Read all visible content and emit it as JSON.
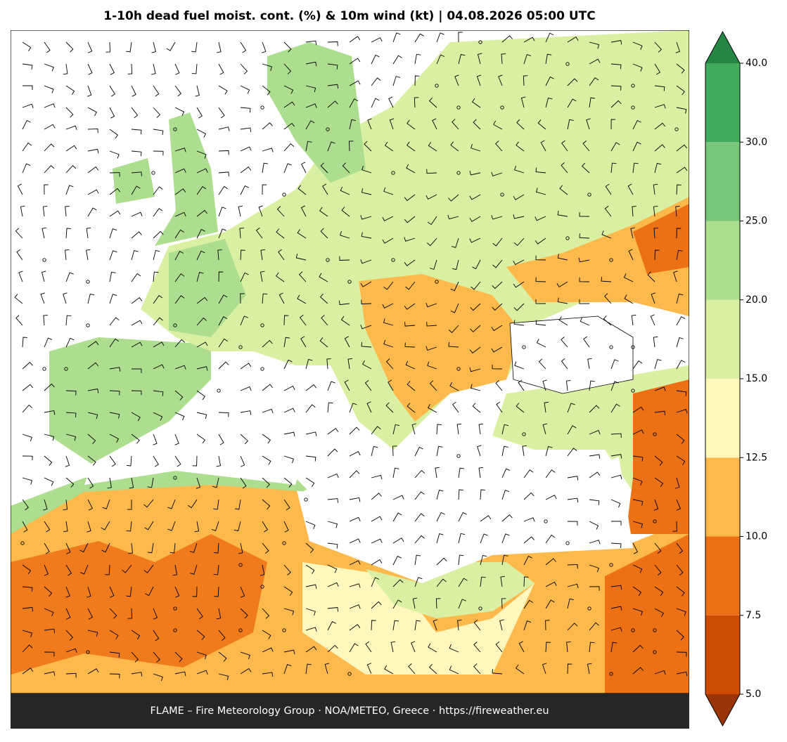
{
  "title": "1-10h dead fuel moist. cont. (%) & 10m wind (kt)  |  04.08.2026 05:00 UTC",
  "colorbar": {
    "boundaries": [
      5,
      7.5,
      10,
      12.5,
      15,
      20,
      25,
      30,
      40
    ],
    "colors": [
      "#cc4c02",
      "#ec7014",
      "#fdb94b",
      "#fff7bc",
      "#d9f0a3",
      "#addd8e",
      "#78c679",
      "#41ab5d"
    ],
    "under_color": "#993404",
    "over_color": "#238443",
    "ticks": [
      {
        "value": 5,
        "label": "5.0"
      },
      {
        "value": 7.5,
        "label": "7.5"
      },
      {
        "value": 10,
        "label": "10.0"
      },
      {
        "value": 12.5,
        "label": "12.5"
      },
      {
        "value": 15,
        "label": "15.0"
      },
      {
        "value": 20,
        "label": "20.0"
      },
      {
        "value": 25,
        "label": "25.0"
      },
      {
        "value": 30,
        "label": "30.0"
      },
      {
        "value": 40,
        "label": "40.0"
      }
    ]
  },
  "footer": "FLAME – Fire Meteorology Group · NOA/METEO, Greece · https://fireweather.eu"
}
